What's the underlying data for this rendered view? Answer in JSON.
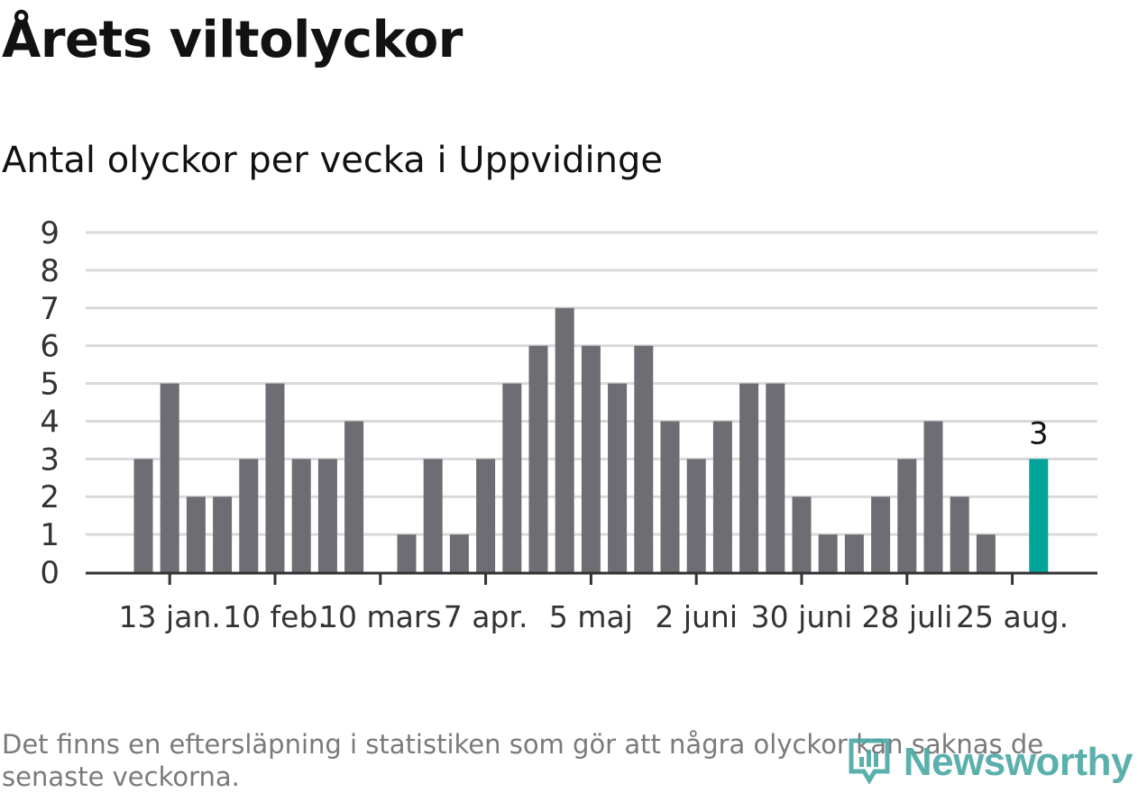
{
  "header": {
    "title": "Årets viltolyckor",
    "subtitle": "Antal olyckor per vecka i Uppvidinge"
  },
  "footnote": "Det finns en eftersläpning i statistiken som gör att några olyckor kan saknas de senaste veckorna.",
  "brand": {
    "name": "Newsworthy",
    "icon": "newsworthy-logo-icon"
  },
  "colors": {
    "bar": "#6e6d73",
    "highlight": "#00a499",
    "grid": "#d9d9d9",
    "axis": "#333333"
  },
  "chart_data": {
    "type": "bar",
    "title": "Årets viltolyckor",
    "subtitle": "Antal olyckor per vecka i Uppvidinge",
    "ylim": [
      0,
      9
    ],
    "yticks": [
      "0",
      "1",
      "2",
      "3",
      "4",
      "5",
      "6",
      "7",
      "8",
      "9"
    ],
    "grid": true,
    "series": [
      {
        "values": [
          3,
          5,
          2,
          2,
          3,
          5,
          3,
          3,
          4,
          0,
          1,
          3,
          1,
          3,
          5,
          6,
          7,
          6,
          5,
          6,
          4,
          3,
          4,
          5,
          5,
          2,
          1,
          1,
          2,
          3,
          4,
          2,
          1,
          0,
          3
        ]
      }
    ],
    "xtick_labels": [
      {
        "index": 1,
        "label": "13 jan."
      },
      {
        "index": 5,
        "label": "10 feb."
      },
      {
        "index": 9,
        "label": "10 mars"
      },
      {
        "index": 13,
        "label": "7 apr."
      },
      {
        "index": 17,
        "label": "5 maj"
      },
      {
        "index": 21,
        "label": "2 juni"
      },
      {
        "index": 25,
        "label": "30 juni"
      },
      {
        "index": 29,
        "label": "28 juli"
      },
      {
        "index": 33,
        "label": "25 aug."
      }
    ],
    "highlight": {
      "index": 34,
      "value": 3,
      "label": "3"
    }
  }
}
